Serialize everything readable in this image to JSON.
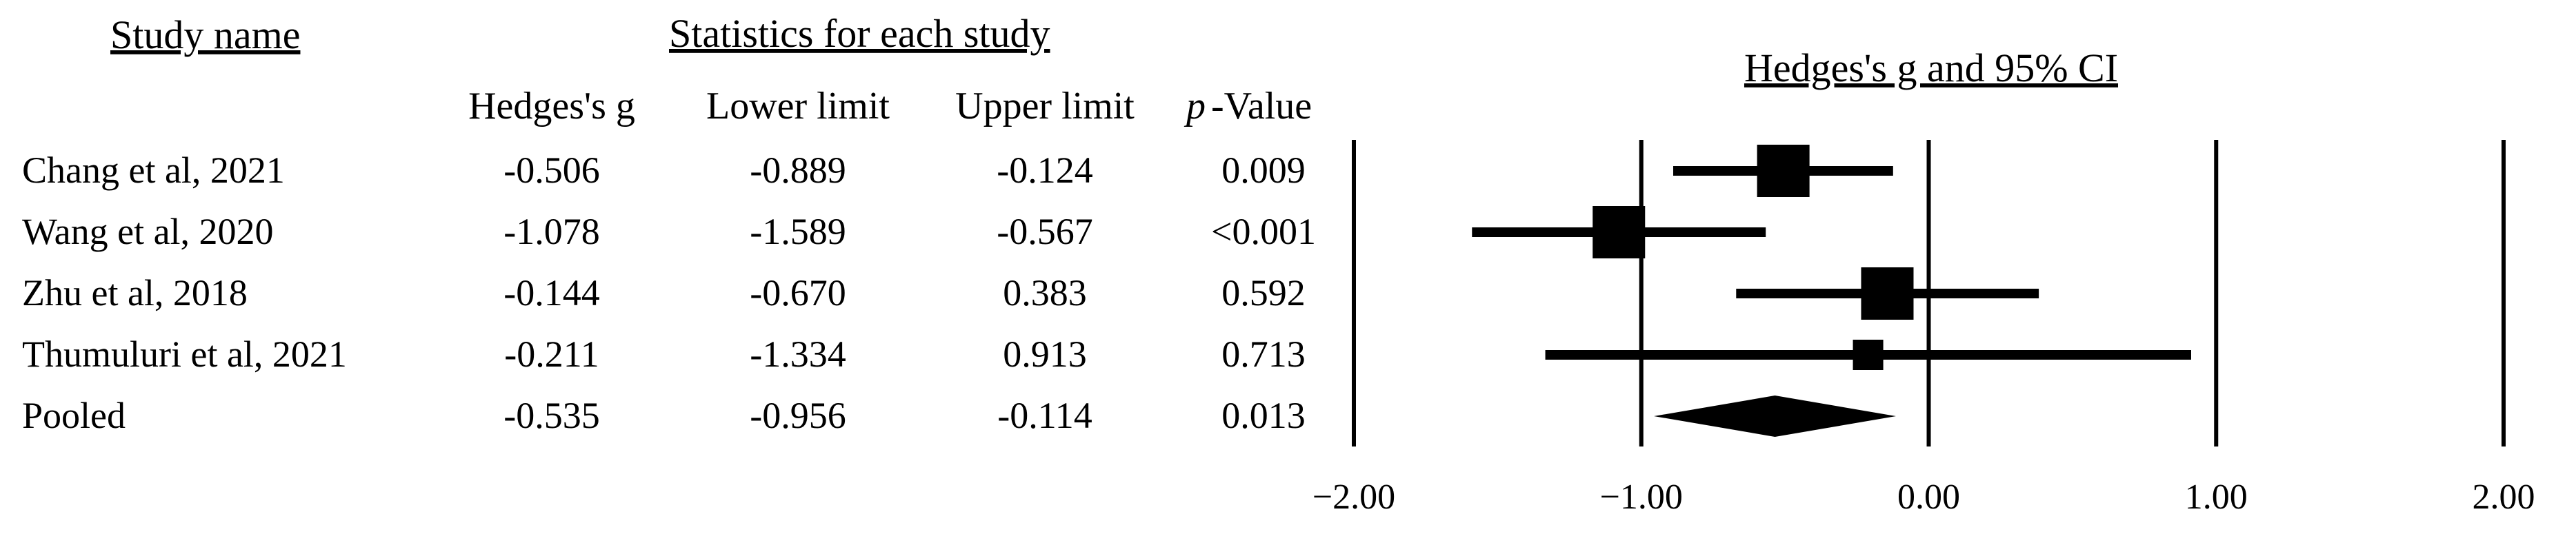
{
  "table": {
    "study_header": "Study name",
    "stats_header": "Statistics for each study",
    "columns": {
      "g": "Hedges's g",
      "lower": "Lower limit",
      "upper": "Upper limit",
      "p_italic": "p",
      "p_rest": "-Value"
    },
    "rows": [
      {
        "study": "Chang et al, 2021",
        "g": "-0.506",
        "lower": "-0.889",
        "upper": "-0.124",
        "p": "0.009"
      },
      {
        "study": "Wang et al, 2020",
        "g": "-1.078",
        "lower": "-1.589",
        "upper": "-0.567",
        "p": "<0.001"
      },
      {
        "study": "Zhu et al, 2018",
        "g": "-0.144",
        "lower": "-0.670",
        "upper": "0.383",
        "p": "0.592"
      },
      {
        "study": "Thumuluri et al, 2021",
        "g": "-0.211",
        "lower": "-1.334",
        "upper": "0.913",
        "p": "0.713"
      },
      {
        "study": "Pooled",
        "g": "-0.535",
        "lower": "-0.956",
        "upper": "-0.114",
        "p": "0.013"
      }
    ]
  },
  "chart_data": {
    "type": "forest",
    "title": "Hedges's g and 95% CI",
    "xlim": [
      -2,
      2
    ],
    "xticks": [
      -2,
      -1,
      0,
      1,
      2
    ],
    "xtick_labels": [
      "−2.00",
      "−1.00",
      "0.00",
      "1.00",
      "2.00"
    ],
    "gridlines": true,
    "studies": [
      {
        "name": "Chang et al, 2021",
        "estimate": -0.506,
        "lower": -0.889,
        "upper": -0.124,
        "weight": "large"
      },
      {
        "name": "Wang et al, 2020",
        "estimate": -1.078,
        "lower": -1.589,
        "upper": -0.567,
        "weight": "large"
      },
      {
        "name": "Zhu et al, 2018",
        "estimate": -0.144,
        "lower": -0.67,
        "upper": 0.383,
        "weight": "large"
      },
      {
        "name": "Thumuluri et al, 2021",
        "estimate": -0.211,
        "lower": -1.334,
        "upper": 0.913,
        "weight": "small"
      }
    ],
    "pooled": {
      "name": "Pooled",
      "estimate": -0.535,
      "lower": -0.956,
      "upper": -0.114
    },
    "colors": {
      "marks": "#000000"
    }
  }
}
